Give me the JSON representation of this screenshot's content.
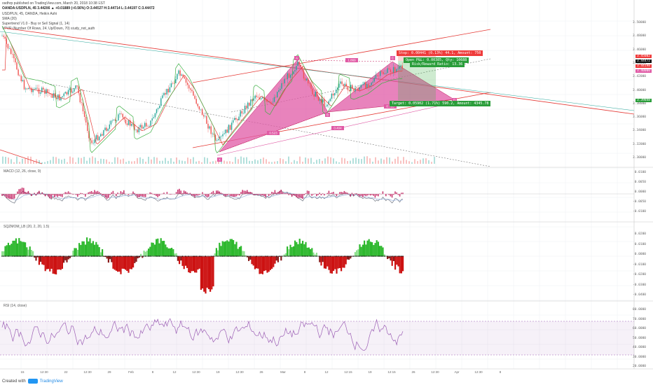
{
  "header": {
    "line1": "osdhrp published on TradingView.com, March 20, 2018 10:38 EST",
    "line2": "OANDA:USDPLN, 45  3.44286  ▲ +0.01889 (+0.56%)  O:3.44527  H:3.44714  L:3.44197  C:3.44472",
    "studies": [
      "USD/PLN, 45, OANDA, Heikin Ashi",
      "SMA (20)",
      "Supertrend V1.0 - Buy or Sell Signal (1, 14)",
      "VPVR (Number Of Rows, 24, Up/Down, 70) study_not_auth"
    ]
  },
  "colors": {
    "up": "#26a69a",
    "down": "#ef5350",
    "harmonic": "#e05aa5",
    "trend": "#e53935",
    "green": "#3cb043",
    "red": "#cc2222",
    "rsi": "#9c5fb5"
  },
  "main": {
    "price_labels": [
      "3.50000",
      "3.48000",
      "3.46000",
      "3.44000",
      "3.42000",
      "3.40000",
      "3.38000",
      "3.36000",
      "3.34000",
      "3.32000",
      "3.30000"
    ],
    "tags": [
      "3.45082",
      "3.44472",
      "3.44198",
      "3.40000",
      "3.39848"
    ],
    "boxes": {
      "stop": "Stop: 0.00441 (0.13%) 44.1, Amount: 750",
      "open": "Open P&L: 0.00385, Qty: 10688",
      "rr": "Risk/Reward Ratio: 13.36",
      "target": "Target: 0.05902 (1.71%) 590.2, Amount: 4345.78"
    },
    "harmonic_labels": [
      "X",
      "A",
      "B",
      "C",
      "D"
    ],
    "ratios": [
      "0.523",
      "1.869",
      "0.404",
      "0.763"
    ]
  },
  "macd": {
    "title": "MACD (12, 26, close, 9)",
    "labels": [
      "0.0100",
      "0.0050",
      "0.0000",
      "-0.0050",
      "-0.0100"
    ]
  },
  "sqz": {
    "title": "SQZMOM_LB (20, 2, 20, 1.5)",
    "labels": [
      "0.0200",
      "0.0100",
      "0.0000",
      "-0.0100",
      "-0.0200",
      "-0.0300",
      "-0.0400"
    ]
  },
  "rsi": {
    "title": "RSI (14, close)",
    "labels": [
      "80.0000",
      "70.0000",
      "60.0000",
      "50.0000",
      "40.0000",
      "30.0000",
      "20.0000"
    ]
  },
  "xaxis": [
    "15",
    "12:30",
    "22",
    "12:30",
    "29",
    "Feb",
    "8",
    "12",
    "12:30",
    "19",
    "12:30",
    "26",
    "Mar",
    "8",
    "12",
    "12:15",
    "19",
    "12:15",
    "26",
    "12:30",
    "Apr",
    "12:30",
    "8"
  ],
  "footer": {
    "text": "Created with",
    "brand": "TradingView"
  }
}
